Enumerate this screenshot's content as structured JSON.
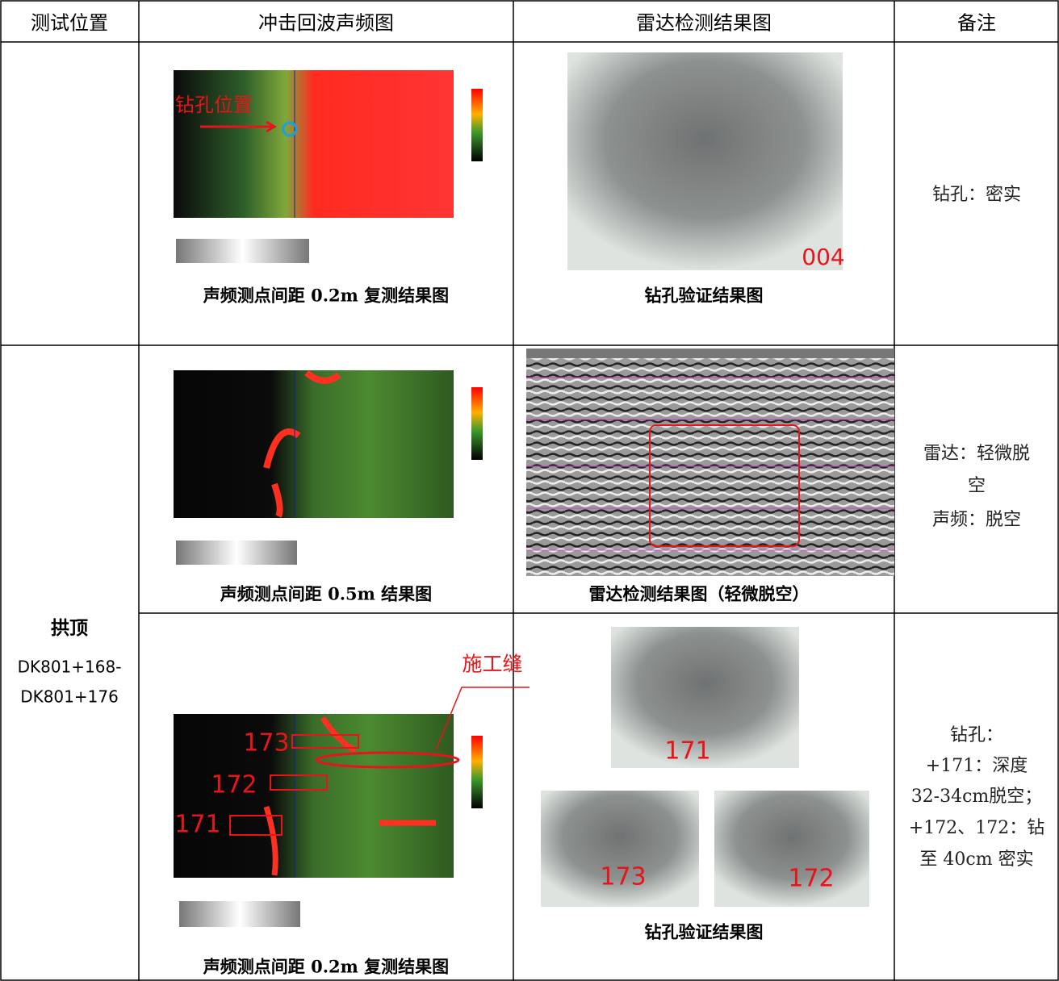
{
  "table": {
    "header": [
      "测试位置",
      "冲击回波声频图",
      "雷达检测结果图",
      "备注"
    ],
    "location": {
      "name": "拱顶",
      "range": [
        "DK801+168-",
        "DK801+176"
      ]
    },
    "rows": [
      {
        "audio_caption": "声频测点间距 0.2m 复测结果图",
        "audio_labels": [
          "钻孔位置"
        ],
        "radar_caption": "钻孔验证结果图",
        "photo_labels": [
          "004"
        ],
        "note": [
          "钻孔：密实"
        ]
      },
      {
        "audio_caption": "声频测点间距 0.5m 结果图",
        "radar_caption": "雷达检测结果图（轻微脱空）",
        "note": [
          "雷达：轻微脱",
          "空",
          "声频：脱空"
        ]
      },
      {
        "audio_caption": "声频测点间距 0.2m 复测结果图",
        "audio_labels": [
          "173",
          "172",
          "171",
          "施工缝"
        ],
        "radar_caption": "钻孔验证结果图",
        "photo_labels": [
          "171",
          "173",
          "172"
        ],
        "note": [
          "钻孔：",
          "+171：深度",
          "32-34cm脱空；",
          "+172、172：钻",
          "至 40cm 密实"
        ]
      }
    ]
  }
}
